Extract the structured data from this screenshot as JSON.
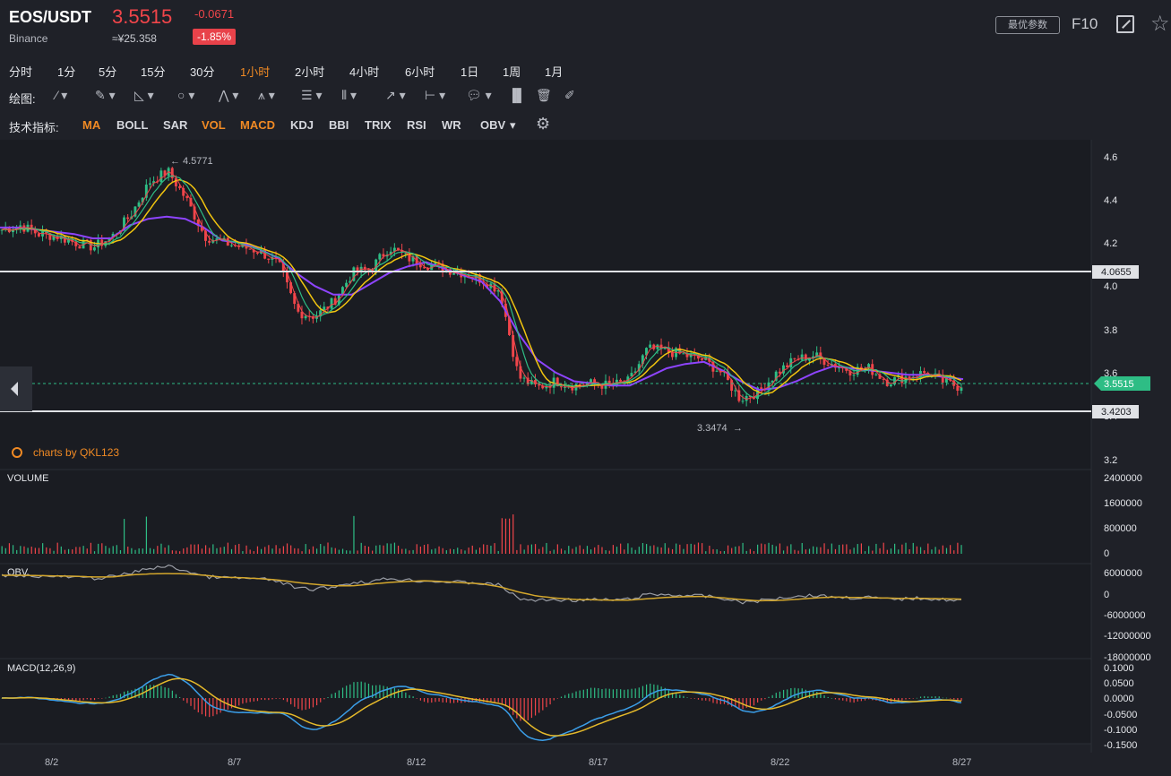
{
  "header": {
    "symbol": "EOS/USDT",
    "exchange": "Binance",
    "price": "3.5515",
    "cny_price": "≈¥25.358",
    "change": "-0.0671",
    "change_pct": "-1.85%",
    "params_button": "最优参数",
    "f10": "F10"
  },
  "intervals": [
    "分时",
    "1分",
    "5分",
    "15分",
    "30分",
    "1小时",
    "2小时",
    "4小时",
    "6小时",
    "1日",
    "1周",
    "1月"
  ],
  "active_interval": "1小时",
  "drawing": {
    "label": "绘图:",
    "tools": [
      "line-tool-icon",
      "pen-tool-icon",
      "triangle-tool-icon",
      "circle-tool-icon",
      "zigzag-tool-icon",
      "pattern-tool-icon",
      "fib-tool-icon",
      "channel-tool-icon",
      "arrow-tool-icon",
      "measure-tool-icon",
      "text-tool-icon",
      "chart-tool-icon",
      "trash-icon",
      "brush-icon"
    ]
  },
  "indicators": {
    "label": "技术指标:",
    "items": [
      "MA",
      "BOLL",
      "SAR",
      "VOL",
      "MACD",
      "KDJ",
      "BBI",
      "TRIX",
      "RSI",
      "WR",
      "OBV"
    ],
    "active": [
      "MA",
      "VOL",
      "MACD"
    ]
  },
  "watermark": "charts by QKL123",
  "main_chart": {
    "high_label": "4.5771",
    "low_label": "3.3474",
    "resistance_label": "4.0655",
    "support_label": "3.4203",
    "last_label": "3.5515",
    "y_ticks": [
      "4.6",
      "4.4",
      "4.2",
      "4.0",
      "3.8",
      "3.6",
      "3.4",
      "3.2"
    ],
    "x_ticks": [
      "8/2",
      "8/7",
      "8/12",
      "8/17",
      "8/22",
      "8/27"
    ]
  },
  "volume_panel": {
    "title": "VOLUME",
    "y_ticks": [
      "2400000",
      "1600000",
      "800000",
      "0"
    ]
  },
  "obv_panel": {
    "title": "OBV",
    "y_ticks": [
      "6000000",
      "0",
      "-6000000",
      "-12000000",
      "-18000000"
    ]
  },
  "macd_panel": {
    "title": "MACD(12,26,9)",
    "y_ticks": [
      "0.1000",
      "0.0500",
      "0.0000",
      "-0.0500",
      "-0.1000",
      "-0.1500"
    ]
  },
  "colors": {
    "up": "#2ebd85",
    "down": "#f0454a",
    "ma_yellow": "#f1c40f",
    "ma_purple": "#8e44ff",
    "accent": "#f08a24"
  },
  "chart_data": {
    "type": "line",
    "title": "",
    "x_ticks": [
      "8/2",
      "8/7",
      "8/12",
      "8/17",
      "8/22",
      "8/27"
    ],
    "ylim": [
      3.2,
      4.65
    ],
    "series": [
      {
        "values": [
          4.28,
          4.3,
          4.26,
          4.25,
          4.22,
          4.2,
          4.25,
          4.35,
          4.5,
          4.55,
          4.42,
          4.25,
          4.22,
          4.2,
          4.18,
          4.12,
          3.9,
          3.88,
          3.95,
          4.08,
          4.1,
          4.2,
          4.15,
          4.12,
          4.1,
          4.08,
          4.05,
          4.0,
          3.6,
          3.55,
          3.58,
          3.56,
          3.57,
          3.56,
          3.58,
          3.73,
          3.72,
          3.7,
          3.68,
          3.62,
          3.5,
          3.53,
          3.62,
          3.68,
          3.7,
          3.66,
          3.63,
          3.64,
          3.58,
          3.6,
          3.62,
          3.58,
          3.5515
        ]
      },
      {
        "values": [
          4.29,
          4.29,
          4.28,
          4.27,
          4.26,
          4.24,
          4.24,
          4.3,
          4.33,
          4.34,
          4.33,
          4.29,
          4.23,
          4.22,
          4.19,
          4.15,
          4.08,
          4.02,
          3.98,
          3.98,
          4.03,
          4.08,
          4.11,
          4.13,
          4.1,
          4.07,
          4.04,
          3.95,
          3.8,
          3.68,
          3.62,
          3.58,
          3.57,
          3.56,
          3.56,
          3.6,
          3.64,
          3.66,
          3.67,
          3.63,
          3.58,
          3.54,
          3.55,
          3.58,
          3.62,
          3.65,
          3.64,
          3.63,
          3.62,
          3.61,
          3.61,
          3.6,
          3.59
        ]
      }
    ]
  }
}
